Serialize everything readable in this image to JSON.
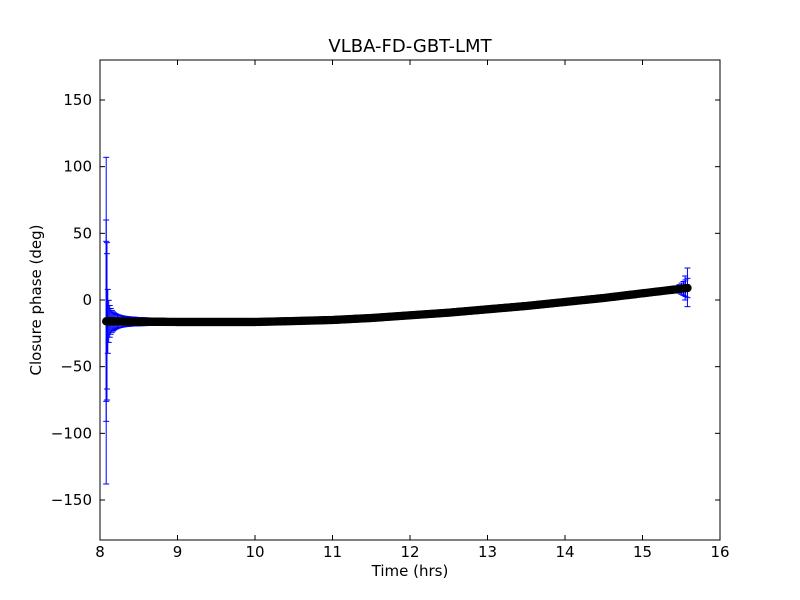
{
  "chart_data": {
    "type": "scatter",
    "title": "VLBA-FD-GBT-LMT",
    "xlabel": "Time (hrs)",
    "ylabel": "Closure phase (deg)",
    "xlim": [
      8,
      16
    ],
    "ylim": [
      -180,
      180
    ],
    "x_ticks": [
      8,
      9,
      10,
      11,
      12,
      13,
      14,
      15,
      16
    ],
    "y_ticks": [
      -150,
      -100,
      -50,
      0,
      50,
      100,
      150
    ],
    "x_tick_labels": [
      "8",
      "9",
      "10",
      "11",
      "12",
      "13",
      "14",
      "15",
      "16"
    ],
    "y_tick_labels": [
      "−150",
      "−100",
      "−50",
      "0",
      "50",
      "100",
      "150"
    ],
    "grid": false,
    "marker_color": "#000000",
    "errorbar_color": "#0000ff",
    "x_range": [
      8.08,
      15.58
    ],
    "curve_knots": [
      {
        "x": 8.08,
        "y": -16
      },
      {
        "x": 9.0,
        "y": -16.5
      },
      {
        "x": 10.0,
        "y": -16.5
      },
      {
        "x": 10.5,
        "y": -15.8
      },
      {
        "x": 11.0,
        "y": -15
      },
      {
        "x": 11.5,
        "y": -13.5
      },
      {
        "x": 12.0,
        "y": -11.5
      },
      {
        "x": 12.5,
        "y": -9.5
      },
      {
        "x": 13.0,
        "y": -7
      },
      {
        "x": 13.5,
        "y": -4.5
      },
      {
        "x": 14.0,
        "y": -1.5
      },
      {
        "x": 14.5,
        "y": 1.5
      },
      {
        "x": 15.0,
        "y": 5
      },
      {
        "x": 15.58,
        "y": 9
      }
    ],
    "highlighted_errorbars": [
      {
        "x": 8.08,
        "y": -16,
        "low": -138,
        "high": 107
      },
      {
        "x": 8.08,
        "y": -16,
        "low": -91,
        "high": 60
      },
      {
        "x": 8.09,
        "y": -16,
        "low": -75,
        "high": 43
      },
      {
        "x": 15.58,
        "y": 9,
        "low": -5,
        "high": 24
      },
      {
        "x": 15.55,
        "y": 9,
        "low": 0,
        "high": 18
      }
    ]
  }
}
